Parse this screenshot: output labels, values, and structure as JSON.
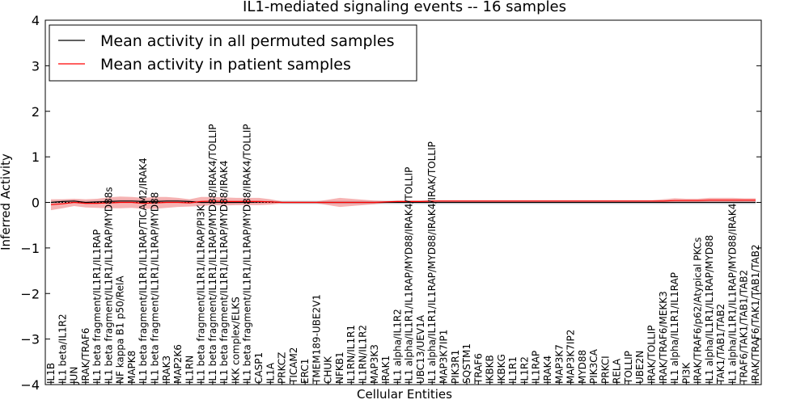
{
  "chart_data": {
    "type": "line",
    "title": "IL1-mediated signaling events -- 16 samples",
    "xlabel": "Cellular Entities",
    "ylabel": "Inferred Activity",
    "ylim": [
      -4,
      4
    ],
    "yticks": [
      -4,
      -3,
      -2,
      -1,
      0,
      1,
      2,
      3,
      4
    ],
    "ytick_labels": [
      "−4",
      "−3",
      "−2",
      "−1",
      "0",
      "1",
      "2",
      "3",
      "4"
    ],
    "legend_position": "top-left",
    "categories": [
      "IL1B",
      "IL1 beta/IL1R2",
      "JUN",
      "IRAK/TRAF6",
      "IL1 beta fragment/IL1R1/IL1RAP",
      "IL1 beta fragment/IL1R1/IL1RAP/MYD88s",
      "NF kappa B1 p50/RelA",
      "MAPK8",
      "IL1 beta fragment/IL1R1/IL1RAP/TICAM2/IRAK4",
      "IL1 beta fragment/IL1R1/IL1RAP/MYD88",
      "IRAK3",
      "MAP2K6",
      "IL1RN",
      "IL1 beta fragment/IL1R1/IL1RAP/PI3K",
      "IL1 beta fragment/IL1R1/IL1RAP/MYD88/IRAK4/TOLLIP",
      "IL1 beta fragment/IL1R1/IL1RAP/MYD88/IRAK4",
      "IKK complex/ELKS",
      "IL1 beta fragment/IL1R1/IL1RAP/MYD88/IRAK4/TOLLIP",
      "CASP1",
      "IL1A",
      "PRKCZ",
      "TICAM2",
      "ERC1",
      "TMEM189-UBE2V1",
      "CHUK",
      "NFKB1",
      "IL1RN/IL1R1",
      "IL1RN/IL1R2",
      "MAP3K3",
      "IRAK1",
      "IL1 alpha/IL1R2",
      "IL1 alpha/IL1R1/IL1RAP/MYD88/IRAK4/TOLLIP",
      "UBC13/UEV1A",
      "IL1 alpha/IL1R1/IL1RAP/MYD88/IRAK4/IRAK/TOLLIP",
      "MAP3K7IP1",
      "PIK3R1",
      "SQSTM1",
      "TRAF6",
      "IKBKB",
      "IKBKG",
      "IL1R1",
      "IL1R2",
      "IL1RAP",
      "IRAK4",
      "MAP3K7",
      "MAP3K7IP2",
      "MYD88",
      "PIK3CA",
      "PRKCI",
      "RELA",
      "TOLLIP",
      "UBE2N",
      "IRAK/TOLLIP",
      "IRAK/TRAF6/MEKK3",
      "IL1 alpha/IL1R1/IL1RAP",
      "PI3K",
      "IRAK/TRAF6/p62/Atypical PKCs",
      "IL1 alpha/IL1R1/IL1RAP/MYD88",
      "TAK1/TAB1/TAB2",
      "IL1 alpha/IL1R1/IL1RAP/MYD88/IRAK4",
      "TRAF6/TAK1/TAB1/TAB2",
      "IRAK/TRAF6/TAK1/TAB1/TAB2"
    ],
    "series": [
      {
        "name": "Mean activity in all permuted samples",
        "color": "#000000",
        "values": [
          0.0,
          0.02,
          0.03,
          0.0,
          0.01,
          0.02,
          0.03,
          0.03,
          0.02,
          0.02,
          0.03,
          0.03,
          0.02,
          0.0,
          0.0,
          0.0,
          0.0,
          0.0,
          0.01,
          0.01,
          0.0,
          0.0,
          0.0,
          0.0,
          0.0,
          0.0,
          0.0,
          0.0,
          0.0,
          0.0,
          0.0,
          0.0,
          0.0,
          0.0,
          0.0,
          0.0,
          0.0,
          0.0,
          0.0,
          0.0,
          0.0,
          0.0,
          0.0,
          0.0,
          0.0,
          0.0,
          0.0,
          0.0,
          0.0,
          0.0,
          0.0,
          0.0,
          0.0,
          0.0,
          0.0,
          0.0,
          0.0,
          0.0,
          0.0,
          0.0,
          0.0,
          0.0
        ]
      },
      {
        "name": "Mean activity in patient samples",
        "color": "#ff0000",
        "values": [
          -0.05,
          -0.03,
          0.0,
          -0.02,
          -0.02,
          -0.01,
          0.0,
          0.0,
          -0.02,
          -0.01,
          0.0,
          0.0,
          -0.01,
          0.02,
          0.03,
          0.02,
          0.02,
          0.02,
          0.02,
          0.01,
          0.0,
          0.0,
          0.0,
          0.0,
          0.0,
          0.0,
          0.0,
          0.0,
          0.0,
          0.01,
          0.02,
          0.02,
          0.02,
          0.03,
          0.03,
          0.03,
          0.03,
          0.03,
          0.03,
          0.03,
          0.03,
          0.03,
          0.03,
          0.03,
          0.03,
          0.03,
          0.03,
          0.03,
          0.03,
          0.03,
          0.03,
          0.03,
          0.03,
          0.03,
          0.04,
          0.04,
          0.04,
          0.05,
          0.05,
          0.05,
          0.05,
          0.05
        ]
      }
    ],
    "band_halfwidth": [
      0.12,
      0.1,
      0.08,
      0.09,
      0.1,
      0.12,
      0.13,
      0.12,
      0.12,
      0.13,
      0.12,
      0.1,
      0.08,
      0.1,
      0.09,
      0.09,
      0.08,
      0.08,
      0.08,
      0.06,
      0.02,
      0.02,
      0.02,
      0.02,
      0.06,
      0.1,
      0.08,
      0.06,
      0.04,
      0.02,
      0.02,
      0.02,
      0.02,
      0.02,
      0.02,
      0.02,
      0.02,
      0.02,
      0.02,
      0.02,
      0.02,
      0.02,
      0.02,
      0.02,
      0.02,
      0.02,
      0.02,
      0.02,
      0.02,
      0.02,
      0.02,
      0.02,
      0.02,
      0.04,
      0.05,
      0.04,
      0.04,
      0.05,
      0.05,
      0.05,
      0.04,
      0.04
    ],
    "permuted_band_halfwidth": 0.04
  }
}
